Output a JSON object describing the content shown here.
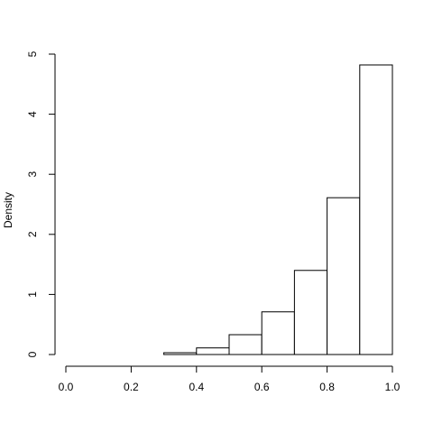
{
  "chart_data": {
    "type": "histogram",
    "ylabel": "Density",
    "bins": [
      0,
      0.1,
      0.2,
      0.3,
      0.4,
      0.5,
      0.6,
      0.7,
      0.8,
      0.9,
      1.0
    ],
    "values": [
      0,
      0,
      0,
      0.03,
      0.11,
      0.33,
      0.71,
      1.4,
      2.61,
      4.82
    ],
    "color": "#ffffff",
    "xlim": [
      0,
      1
    ],
    "xticks": [
      {
        "value": 0,
        "label": "0.0"
      },
      0.2,
      0.4,
      0.6,
      0.8,
      {
        "value": 1,
        "label": "1.0"
      }
    ],
    "ylim": [
      0,
      5
    ],
    "yticks": [
      0,
      1,
      2,
      3,
      4,
      5
    ]
  }
}
